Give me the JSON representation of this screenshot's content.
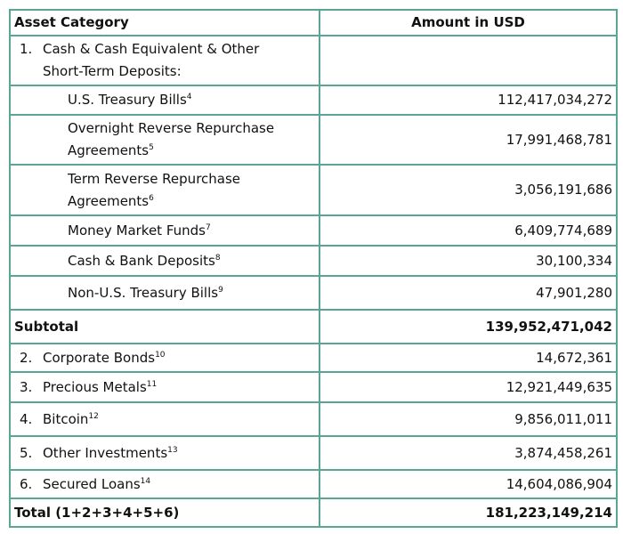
{
  "table": {
    "header": [
      "Asset Category",
      "Amount in USD"
    ],
    "rows": [
      {
        "num": "1.",
        "label": "Cash & Cash Equivalent & Other Short-Term Deposits:"
      },
      {
        "label": "U.S. Treasury Bills",
        "note": "4",
        "amount": "112,417,034,272"
      },
      {
        "label": "Overnight Reverse Repurchase Agreements",
        "note": "5",
        "amount": "17,991,468,781"
      },
      {
        "label": "Term Reverse Repurchase Agreements",
        "note": "6",
        "amount": "3,056,191,686"
      },
      {
        "label": "Money Market Funds",
        "note": "7",
        "amount": "6,409,774,689"
      },
      {
        "label": "Cash & Bank Deposits",
        "note": "8",
        "amount": "30,100,334"
      },
      {
        "label": "Non-U.S. Treasury Bills",
        "note": "9",
        "amount": "47,901,280"
      },
      {
        "label": "Subtotal",
        "amount": "139,952,471,042"
      },
      {
        "num": "2.",
        "label": "Corporate Bonds",
        "note": "10",
        "amount": "14,672,361"
      },
      {
        "num": "3.",
        "label": "Precious Metals",
        "note": "11",
        "amount": "12,921,449,635"
      },
      {
        "num": "4.",
        "label": "Bitcoin",
        "note": "12",
        "amount": "9,856,011,011"
      },
      {
        "num": "5.",
        "label": "Other Investments",
        "note": "13",
        "amount": "3,874,458,261"
      },
      {
        "num": "6.",
        "label": "Secured Loans",
        "note": "14",
        "amount": "14,604,086,904"
      },
      {
        "label": "Total (1+2+3+4+5+6)",
        "amount": "181,223,149,214"
      }
    ]
  }
}
